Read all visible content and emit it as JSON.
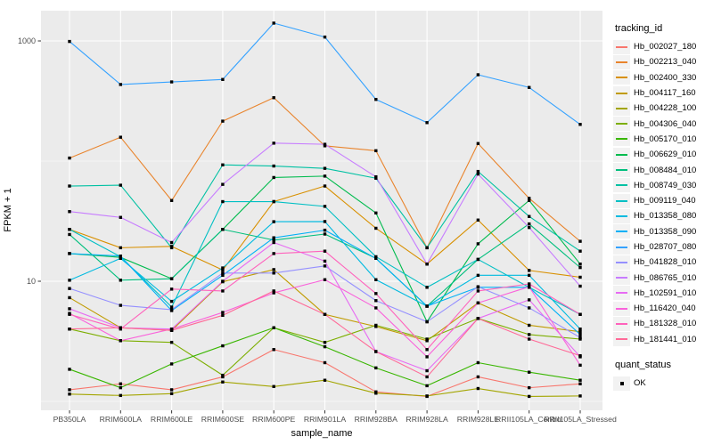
{
  "figure": {
    "y_axis_title": "FPKM + 1",
    "x_axis_title": "sample_name"
  },
  "legend": {
    "tracking_id_title": "tracking_id",
    "quant_status_title": "quant_status",
    "quant_status_ok_label": "OK"
  },
  "chart_data": {
    "type": "line",
    "title": "",
    "xlabel": "sample_name",
    "ylabel": "FPKM + 1",
    "y_scale": "log10",
    "ylim": [
      0.9,
      1800
    ],
    "y_ticks": [
      10,
      1000
    ],
    "y_tick_labels": [
      "10",
      "1000"
    ],
    "y_minor_gridlines": [
      1,
      100
    ],
    "grid": "white on grey panel",
    "legend_position": "right",
    "panel_color": "#EBEBEB",
    "point_style": "small black square (quant_status OK)",
    "x_categories": [
      "PB350LA",
      "RRIM600LA",
      "RRIM600LE",
      "RRIM600SE",
      "RRIM600PE",
      "RRIM901LA",
      "RRIM928BA",
      "RRIM928LA",
      "RRIM928LE",
      "RRII105LA_Control",
      "RRII105LA_Stressed"
    ],
    "series": [
      {
        "name": "Hb_002027_180",
        "color": "#F8766D",
        "values": [
          1.25,
          1.4,
          1.25,
          1.6,
          2.7,
          2.1,
          1.2,
          1.1,
          1.6,
          1.3,
          1.4
        ]
      },
      {
        "name": "Hb_002213_040",
        "color": "#E9842C",
        "values": [
          106,
          158,
          47,
          215,
          337,
          134,
          122,
          19,
          140,
          49,
          21.5
        ]
      },
      {
        "name": "Hb_002400_330",
        "color": "#D89000",
        "values": [
          27,
          19,
          19.5,
          12.4,
          46,
          62,
          27.6,
          13.9,
          32.3,
          12.3,
          10.8
        ]
      },
      {
        "name": "Hb_004117_160",
        "color": "#C09B00",
        "values": [
          7.3,
          4.1,
          3.9,
          9.9,
          12.5,
          5.3,
          4.2,
          3.2,
          6.6,
          4.3,
          3.8
        ]
      },
      {
        "name": "Hb_004228_100",
        "color": "#A3A500",
        "values": [
          1.15,
          1.12,
          1.16,
          1.45,
          1.33,
          1.5,
          1.17,
          1.11,
          1.28,
          1.1,
          1.11
        ]
      },
      {
        "name": "Hb_004306_040",
        "color": "#7CAE00",
        "values": [
          4.0,
          3.2,
          3.1,
          1.65,
          4.1,
          3.1,
          4.3,
          3.3,
          4.9,
          3.6,
          3.3
        ]
      },
      {
        "name": "Hb_005170_010",
        "color": "#39B600",
        "values": [
          1.85,
          1.3,
          2.05,
          2.9,
          4.1,
          2.85,
          1.9,
          1.35,
          2.1,
          1.75,
          1.5
        ]
      },
      {
        "name": "Hb_006629_010",
        "color": "#00BB4E",
        "values": [
          17,
          15.8,
          10.5,
          27,
          73,
          75,
          37,
          4.6,
          20.5,
          47,
          13.9
        ]
      },
      {
        "name": "Hb_008484_010",
        "color": "#00BF7D",
        "values": [
          24.5,
          10.2,
          10.5,
          27,
          22,
          24.7,
          15.5,
          6.2,
          15.2,
          30,
          13
        ]
      },
      {
        "name": "Hb_008749_030",
        "color": "#00C1A3",
        "values": [
          62,
          63,
          19,
          93,
          91,
          87,
          72,
          19,
          82,
          34.6,
          17.8
        ]
      },
      {
        "name": "Hb_009119_040",
        "color": "#00BFC4",
        "values": [
          27,
          16,
          6.1,
          46,
          46,
          42,
          16,
          8.9,
          15.2,
          8.9,
          5.3
        ]
      },
      {
        "name": "Hb_013358_080",
        "color": "#00BAE0",
        "values": [
          10.2,
          15.5,
          6.8,
          12.9,
          31.3,
          31.4,
          10.3,
          6.2,
          11.2,
          11.2,
          4.0
        ]
      },
      {
        "name": "Hb_013358_090",
        "color": "#00B0F6",
        "values": [
          17,
          16.2,
          5.7,
          11.2,
          23,
          26.6,
          15.5,
          6.2,
          8.9,
          8.9,
          3.6
        ]
      },
      {
        "name": "Hb_028707_080",
        "color": "#35A2FF",
        "values": [
          990,
          434,
          456,
          478,
          1407,
          1077,
          326,
          209,
          523,
          410,
          202
        ]
      },
      {
        "name": "Hb_041828_010",
        "color": "#9590FF",
        "values": [
          8.7,
          6.3,
          5.8,
          11.7,
          11.7,
          13.4,
          6.9,
          4.6,
          9.0,
          6.0,
          3.4
        ]
      },
      {
        "name": "Hb_086765_010",
        "color": "#C77CFF",
        "values": [
          38,
          34,
          21,
          64,
          141,
          138,
          74,
          13.9,
          78,
          28,
          9.1
        ]
      },
      {
        "name": "Hb_102591_010",
        "color": "#E76BF3",
        "values": [
          5.9,
          4.1,
          4.0,
          10,
          21,
          14.7,
          2.6,
          1.8,
          4.9,
          7.0,
          2.35
        ]
      },
      {
        "name": "Hb_116420_040",
        "color": "#FA62DB",
        "values": [
          5.4,
          3.2,
          4.0,
          5.5,
          8.0,
          10.3,
          6.0,
          2.35,
          6.6,
          9.0,
          2.0
        ]
      },
      {
        "name": "Hb_181328_010",
        "color": "#FF62BC",
        "values": [
          5.3,
          4.0,
          8.6,
          8.3,
          17,
          17.8,
          7.9,
          2.7,
          8.3,
          9.5,
          5.3
        ]
      },
      {
        "name": "Hb_181441_010",
        "color": "#FF6A98",
        "values": [
          4.0,
          4.1,
          3.9,
          5.2,
          8.3,
          5.3,
          2.6,
          1.6,
          4.9,
          3.3,
          2.4
        ]
      }
    ],
    "quant_status_values": [
      "OK"
    ]
  }
}
